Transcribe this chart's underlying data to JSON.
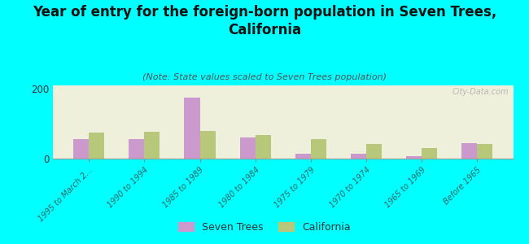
{
  "title": "Year of entry for the foreign-born population in Seven Trees,\nCalifornia",
  "subtitle": "(Note: State values scaled to Seven Trees population)",
  "categories": [
    "1995 to March 2...",
    "1990 to 1994",
    "1985 to 1989",
    "1980 to 1984",
    "1975 to 1979",
    "1970 to 1974",
    "1965 to 1969",
    "Before 1965"
  ],
  "seven_trees": [
    55,
    55,
    175,
    60,
    15,
    15,
    8,
    45
  ],
  "california": [
    75,
    78,
    80,
    68,
    55,
    42,
    30,
    42
  ],
  "seven_trees_color": "#cc99cc",
  "california_color": "#b8c87a",
  "background_color": "#00ffff",
  "plot_bg_color": "#eef0dc",
  "ylim": [
    0,
    210
  ],
  "yticks": [
    0,
    200
  ],
  "bar_width": 0.28,
  "legend_label_st": "Seven Trees",
  "legend_label_ca": "California",
  "watermark": "City-Data.com",
  "tick_color": "#336666",
  "title_fontsize": 12,
  "subtitle_fontsize": 8
}
